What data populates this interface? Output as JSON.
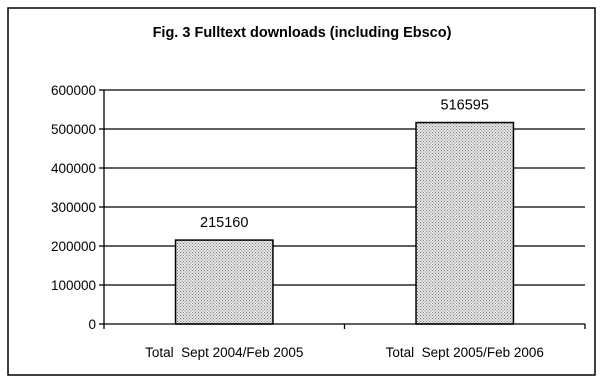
{
  "chart_data": {
    "type": "bar",
    "title": "Fig. 3 Fulltext downloads (including Ebsco)",
    "xlabel": "",
    "ylabel": "",
    "categories": [
      "Total  Sept 2004/Feb 2005",
      "Total  Sept 2005/Feb 2006"
    ],
    "values": [
      215160,
      516595
    ],
    "data_labels": [
      "215160",
      "516595"
    ],
    "ylim": [
      0,
      600000
    ],
    "yticks": [
      0,
      100000,
      200000,
      300000,
      400000,
      500000,
      600000
    ],
    "ytick_labels": [
      "0",
      "100000",
      "200000",
      "300000",
      "400000",
      "500000",
      "600000"
    ],
    "grid": true,
    "legend": "none",
    "colors": {
      "bar_fill": "#d9d9d9",
      "bar_stroke": "#000000",
      "grid": "#000000",
      "border": "#000000"
    }
  }
}
